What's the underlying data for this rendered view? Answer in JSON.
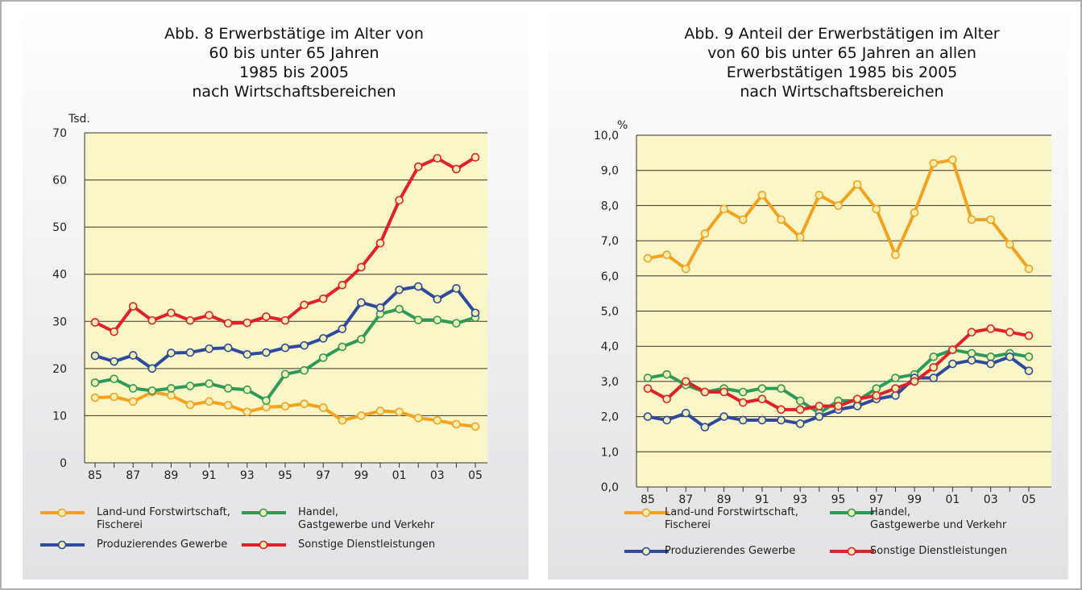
{
  "chart_data": [
    {
      "type": "line",
      "title": [
        "Abb. 8  Erwerbstätige im Alter von",
        "60 bis unter 65 Jahren",
        "1985 bis 2005",
        "nach Wirtschaftsbereichen"
      ],
      "y_label": "Tsd.",
      "categories": [
        "85",
        null,
        "87",
        null,
        "89",
        null,
        "91",
        null,
        "93",
        null,
        "95",
        null,
        "97",
        null,
        "99",
        null,
        "01",
        null,
        "03",
        null,
        "05"
      ],
      "ylim": [
        0,
        70
      ],
      "yticks": [
        0,
        10,
        20,
        30,
        40,
        50,
        60,
        70
      ],
      "grid": true,
      "series": [
        {
          "name": "Land-und Forstwirtschaft,\nFischerei",
          "color": "#f5a21e",
          "values": [
            13.8,
            14,
            13,
            15,
            14.3,
            12.3,
            13,
            12.2,
            10.8,
            11.8,
            12,
            12.5,
            11.7,
            9,
            10,
            11,
            10.8,
            9.5,
            9,
            8.2,
            7.7
          ]
        },
        {
          "name": "Handel,\nGastgewerbe und Verkehr",
          "color": "#2e9a58",
          "values": [
            17,
            17.8,
            15.8,
            15.3,
            15.8,
            16.3,
            16.8,
            15.8,
            15.5,
            13.2,
            18.8,
            19.6,
            22.3,
            24.6,
            26.2,
            31.6,
            32.6,
            30.3,
            30.3,
            29.6,
            30.8
          ]
        },
        {
          "name": "Produzierendes Gewerbe",
          "color": "#2d4a9c",
          "values": [
            22.7,
            21.5,
            22.8,
            20,
            23.3,
            23.4,
            24.2,
            24.4,
            23,
            23.4,
            24.4,
            24.9,
            26.4,
            28.4,
            34,
            32.9,
            36.7,
            37.4,
            34.7,
            37,
            31.8
          ]
        },
        {
          "name": "Sonstige Dienstleistungen",
          "color": "#e2202a",
          "values": [
            29.8,
            27.8,
            33.2,
            30.2,
            31.8,
            30.2,
            31.3,
            29.6,
            29.7,
            31,
            30.2,
            33.5,
            34.8,
            37.7,
            41.5,
            46.6,
            55.7,
            62.8,
            64.6,
            62.3,
            64.8
          ]
        }
      ]
    },
    {
      "type": "line",
      "title": [
        "Abb. 9  Anteil der Erwerbstätigen im Alter",
        "von 60 bis unter 65 Jahren an allen",
        "Erwerbstätigen 1985 bis 2005",
        "nach Wirtschaftsbereichen"
      ],
      "y_label": "%",
      "categories": [
        "85",
        null,
        "87",
        null,
        "89",
        null,
        "91",
        null,
        "93",
        null,
        "95",
        null,
        "97",
        null,
        "99",
        null,
        "01",
        null,
        "03",
        null,
        "05"
      ],
      "ylim": [
        0,
        10
      ],
      "yticks": [
        {
          "value": 0,
          "label": "0,0"
        },
        {
          "value": 1,
          "label": "1,0"
        },
        {
          "value": 2,
          "label": "2,0"
        },
        {
          "value": 3,
          "label": "3,0"
        },
        {
          "value": 4,
          "label": "4,0"
        },
        {
          "value": 5,
          "label": "5,0"
        },
        {
          "value": 6,
          "label": "6,0"
        },
        {
          "value": 7,
          "label": "7,0"
        },
        {
          "value": 8,
          "label": "8,0"
        },
        {
          "value": 9,
          "label": "9,0"
        },
        {
          "value": 10,
          "label": "10,0"
        }
      ],
      "grid": true,
      "series": [
        {
          "name": "Land-und Forstwirtschaft,\nFischerei",
          "color": "#f5a21e",
          "values": [
            6.5,
            6.6,
            6.2,
            7.2,
            7.9,
            7.6,
            8.3,
            7.6,
            7.1,
            8.3,
            8.0,
            8.6,
            7.9,
            6.6,
            7.8,
            9.2,
            9.3,
            7.6,
            7.6,
            6.9,
            6.2
          ]
        },
        {
          "name": "Handel,\nGastgewerbe und Verkehr",
          "color": "#2e9a58",
          "values": [
            3.1,
            3.2,
            2.9,
            2.7,
            2.8,
            2.7,
            2.8,
            2.8,
            2.45,
            2.1,
            2.45,
            2.45,
            2.8,
            3.1,
            3.2,
            3.7,
            3.9,
            3.8,
            3.7,
            3.8,
            3.7
          ]
        },
        {
          "name": "Produzierendes Gewerbe",
          "color": "#2d4a9c",
          "values": [
            2.0,
            1.9,
            2.1,
            1.7,
            2.0,
            1.9,
            1.9,
            1.9,
            1.8,
            2.0,
            2.2,
            2.3,
            2.5,
            2.6,
            3.1,
            3.1,
            3.5,
            3.6,
            3.5,
            3.7,
            3.3
          ]
        },
        {
          "name": "Sonstige Dienstleistungen",
          "color": "#e2202a",
          "values": [
            2.8,
            2.5,
            3.0,
            2.7,
            2.7,
            2.4,
            2.5,
            2.2,
            2.2,
            2.3,
            2.3,
            2.5,
            2.6,
            2.8,
            3.0,
            3.4,
            3.9,
            4.4,
            4.5,
            4.4,
            4.3
          ]
        }
      ]
    }
  ]
}
